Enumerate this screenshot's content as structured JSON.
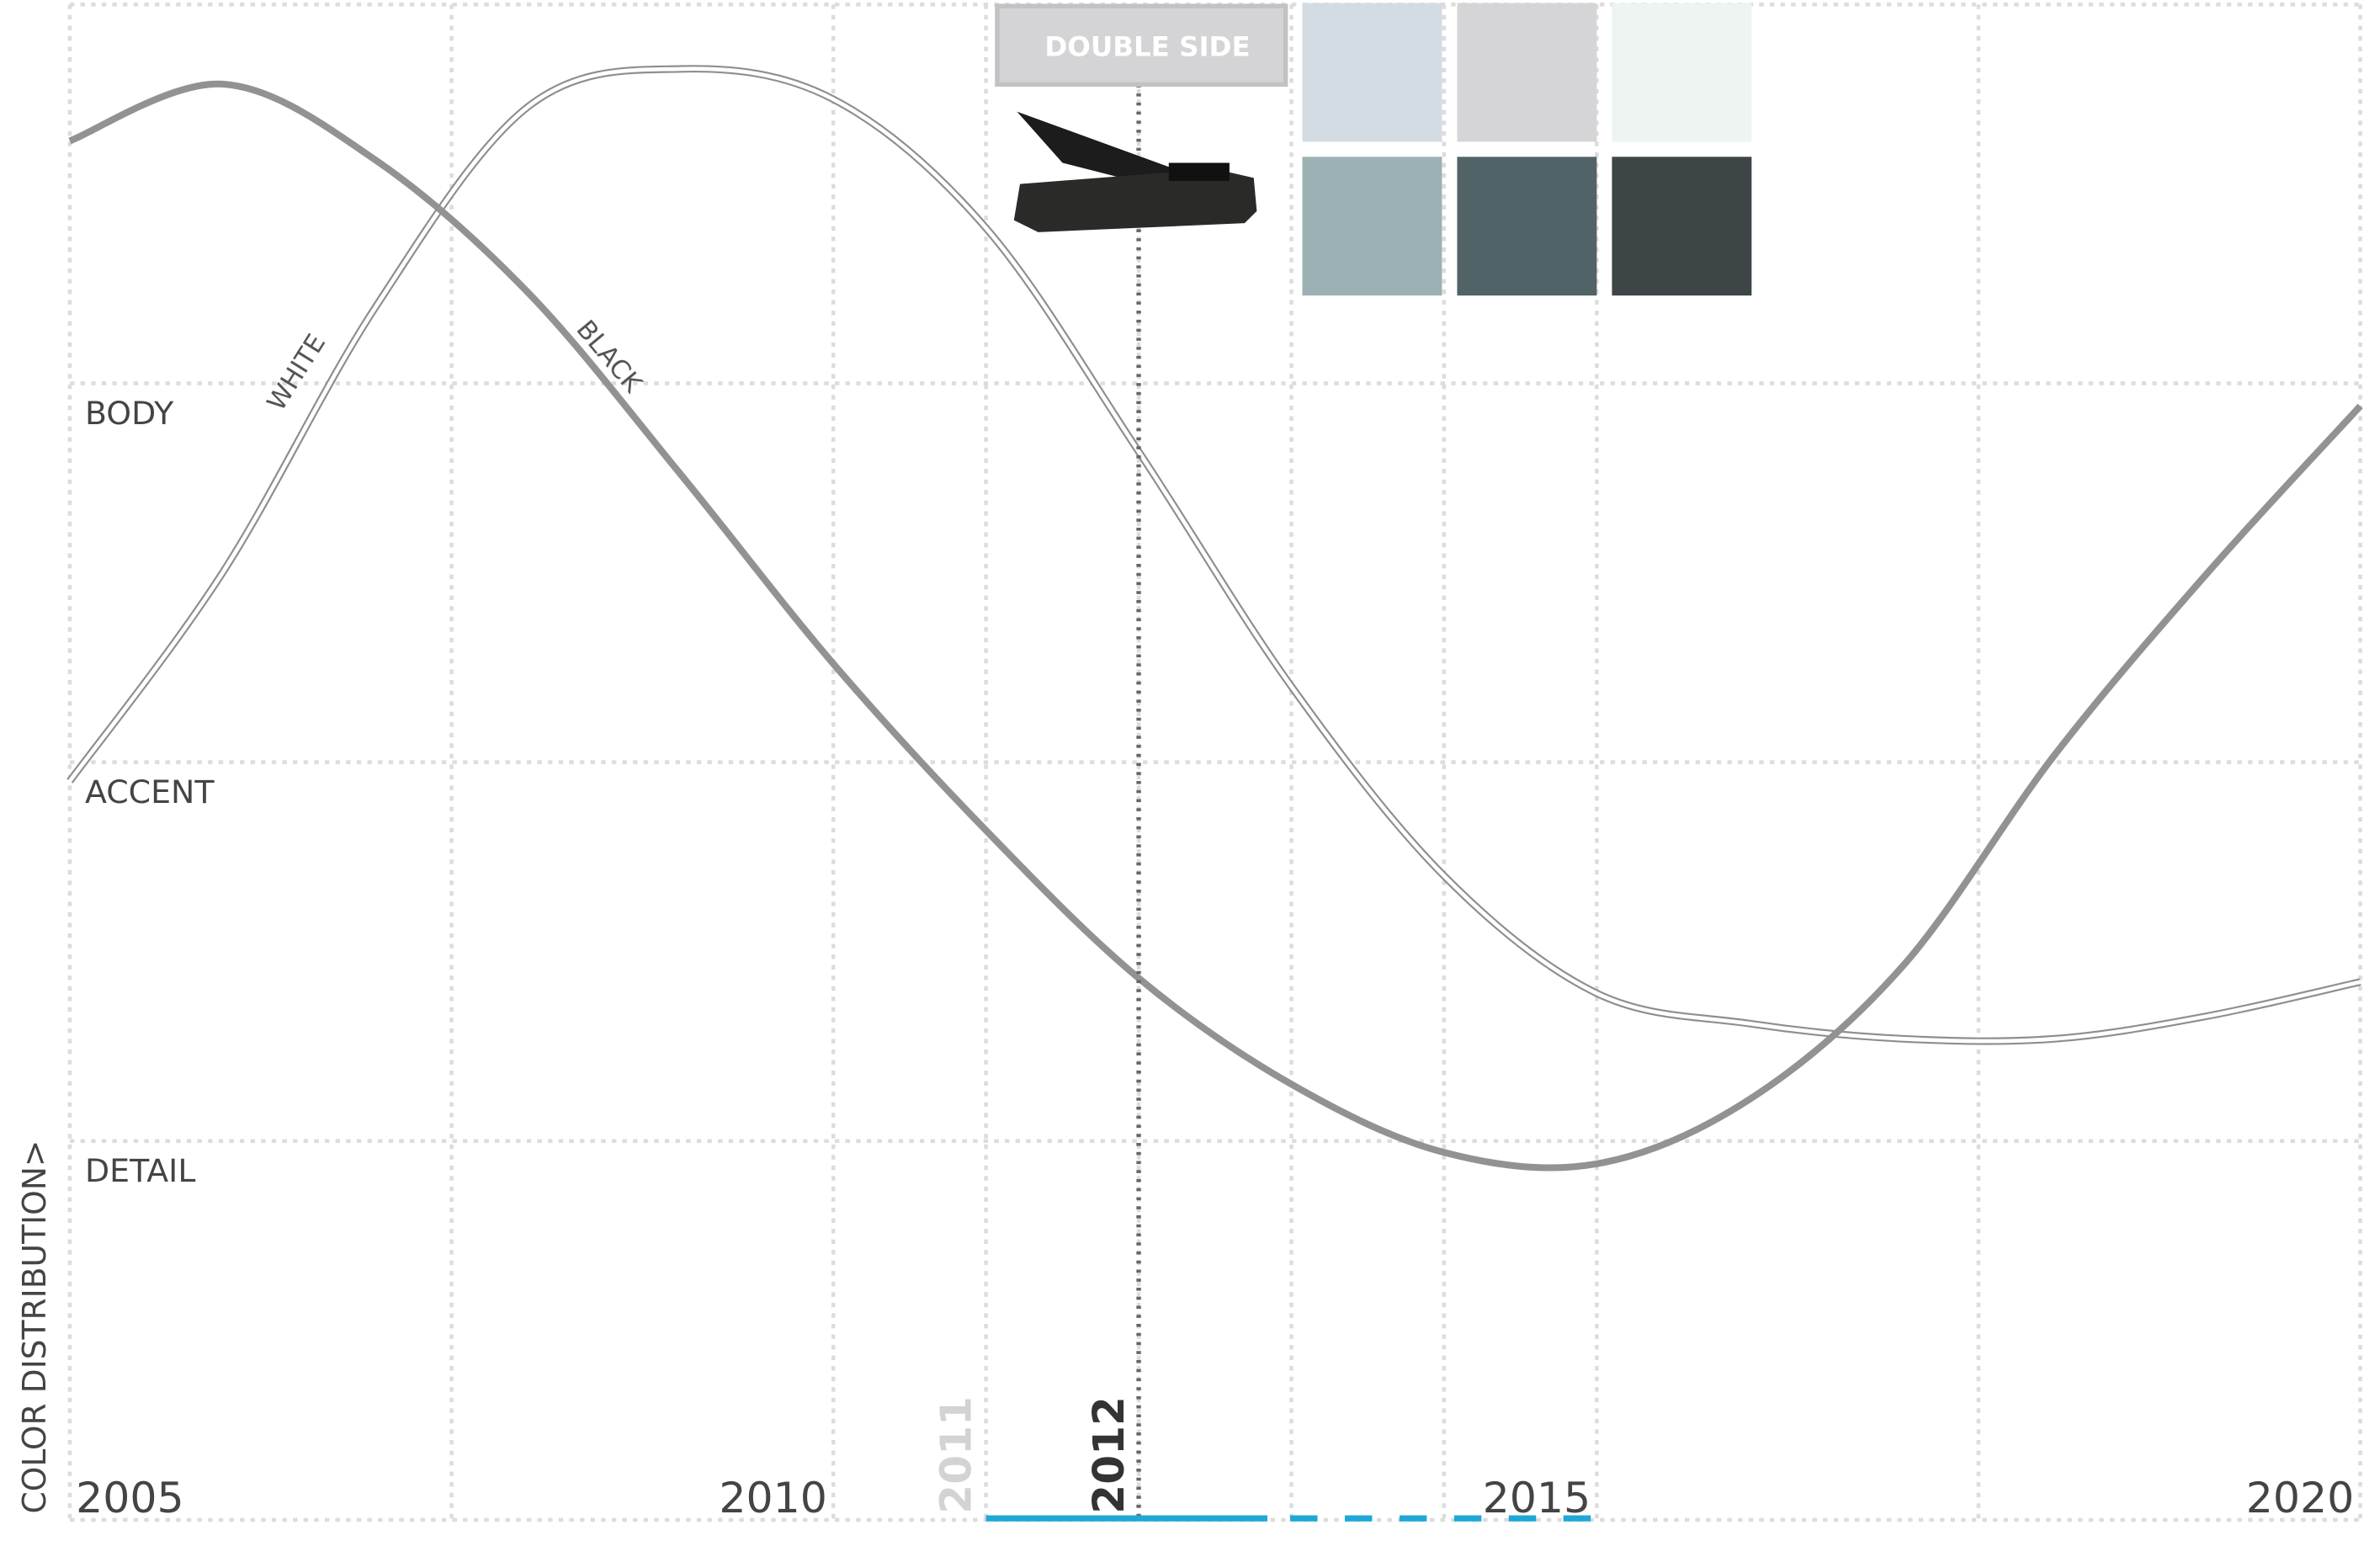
{
  "chart_data": {
    "type": "line",
    "y_axis_label": "COLOR DISTRIBUTION>",
    "x": [
      2005,
      2006,
      2007,
      2008,
      2009,
      2010,
      2011,
      2012,
      2013,
      2014,
      2015,
      2016,
      2017,
      2018,
      2019,
      2020
    ],
    "series": [
      {
        "name": "WHITE",
        "color": "#8e8e90",
        "values": [
          1.95,
          2.5,
          3.2,
          3.73,
          3.83,
          3.75,
          3.41,
          2.82,
          2.2,
          1.7,
          1.39,
          1.31,
          1.27,
          1.27,
          1.33,
          1.42
        ]
      },
      {
        "name": "BLACK",
        "color": "#929295",
        "values": [
          3.64,
          3.79,
          3.59,
          3.24,
          2.76,
          2.26,
          1.82,
          1.43,
          1.15,
          0.97,
          0.94,
          1.11,
          1.46,
          2.02,
          2.5,
          2.94
        ]
      }
    ],
    "xlim": [
      2005,
      2020
    ],
    "xticks": [
      2005,
      2010,
      2015,
      2020
    ],
    "xgrid": [
      2005,
      2007.5,
      2010,
      2011,
      2012,
      2013,
      2014,
      2015,
      2017.5,
      2020
    ],
    "ylim": [
      0,
      4
    ],
    "yticks": [
      {
        "value": 1,
        "label": "DETAIL"
      },
      {
        "value": 2,
        "label": "ACCENT"
      },
      {
        "value": 3,
        "label": "BODY"
      }
    ],
    "ygrid": [
      0,
      1,
      2,
      3,
      4
    ],
    "grid": true,
    "previous_year": 2011,
    "selected_year": 2012,
    "tooltip": {
      "title": "DOUBLE SIDE",
      "swatches": [
        "#d3dbe3",
        "#d5d5d7",
        "#edf4f1",
        "#9cb1b3",
        "#516366",
        "#3d4546"
      ]
    },
    "timeline_color": "#1ea7d8"
  }
}
